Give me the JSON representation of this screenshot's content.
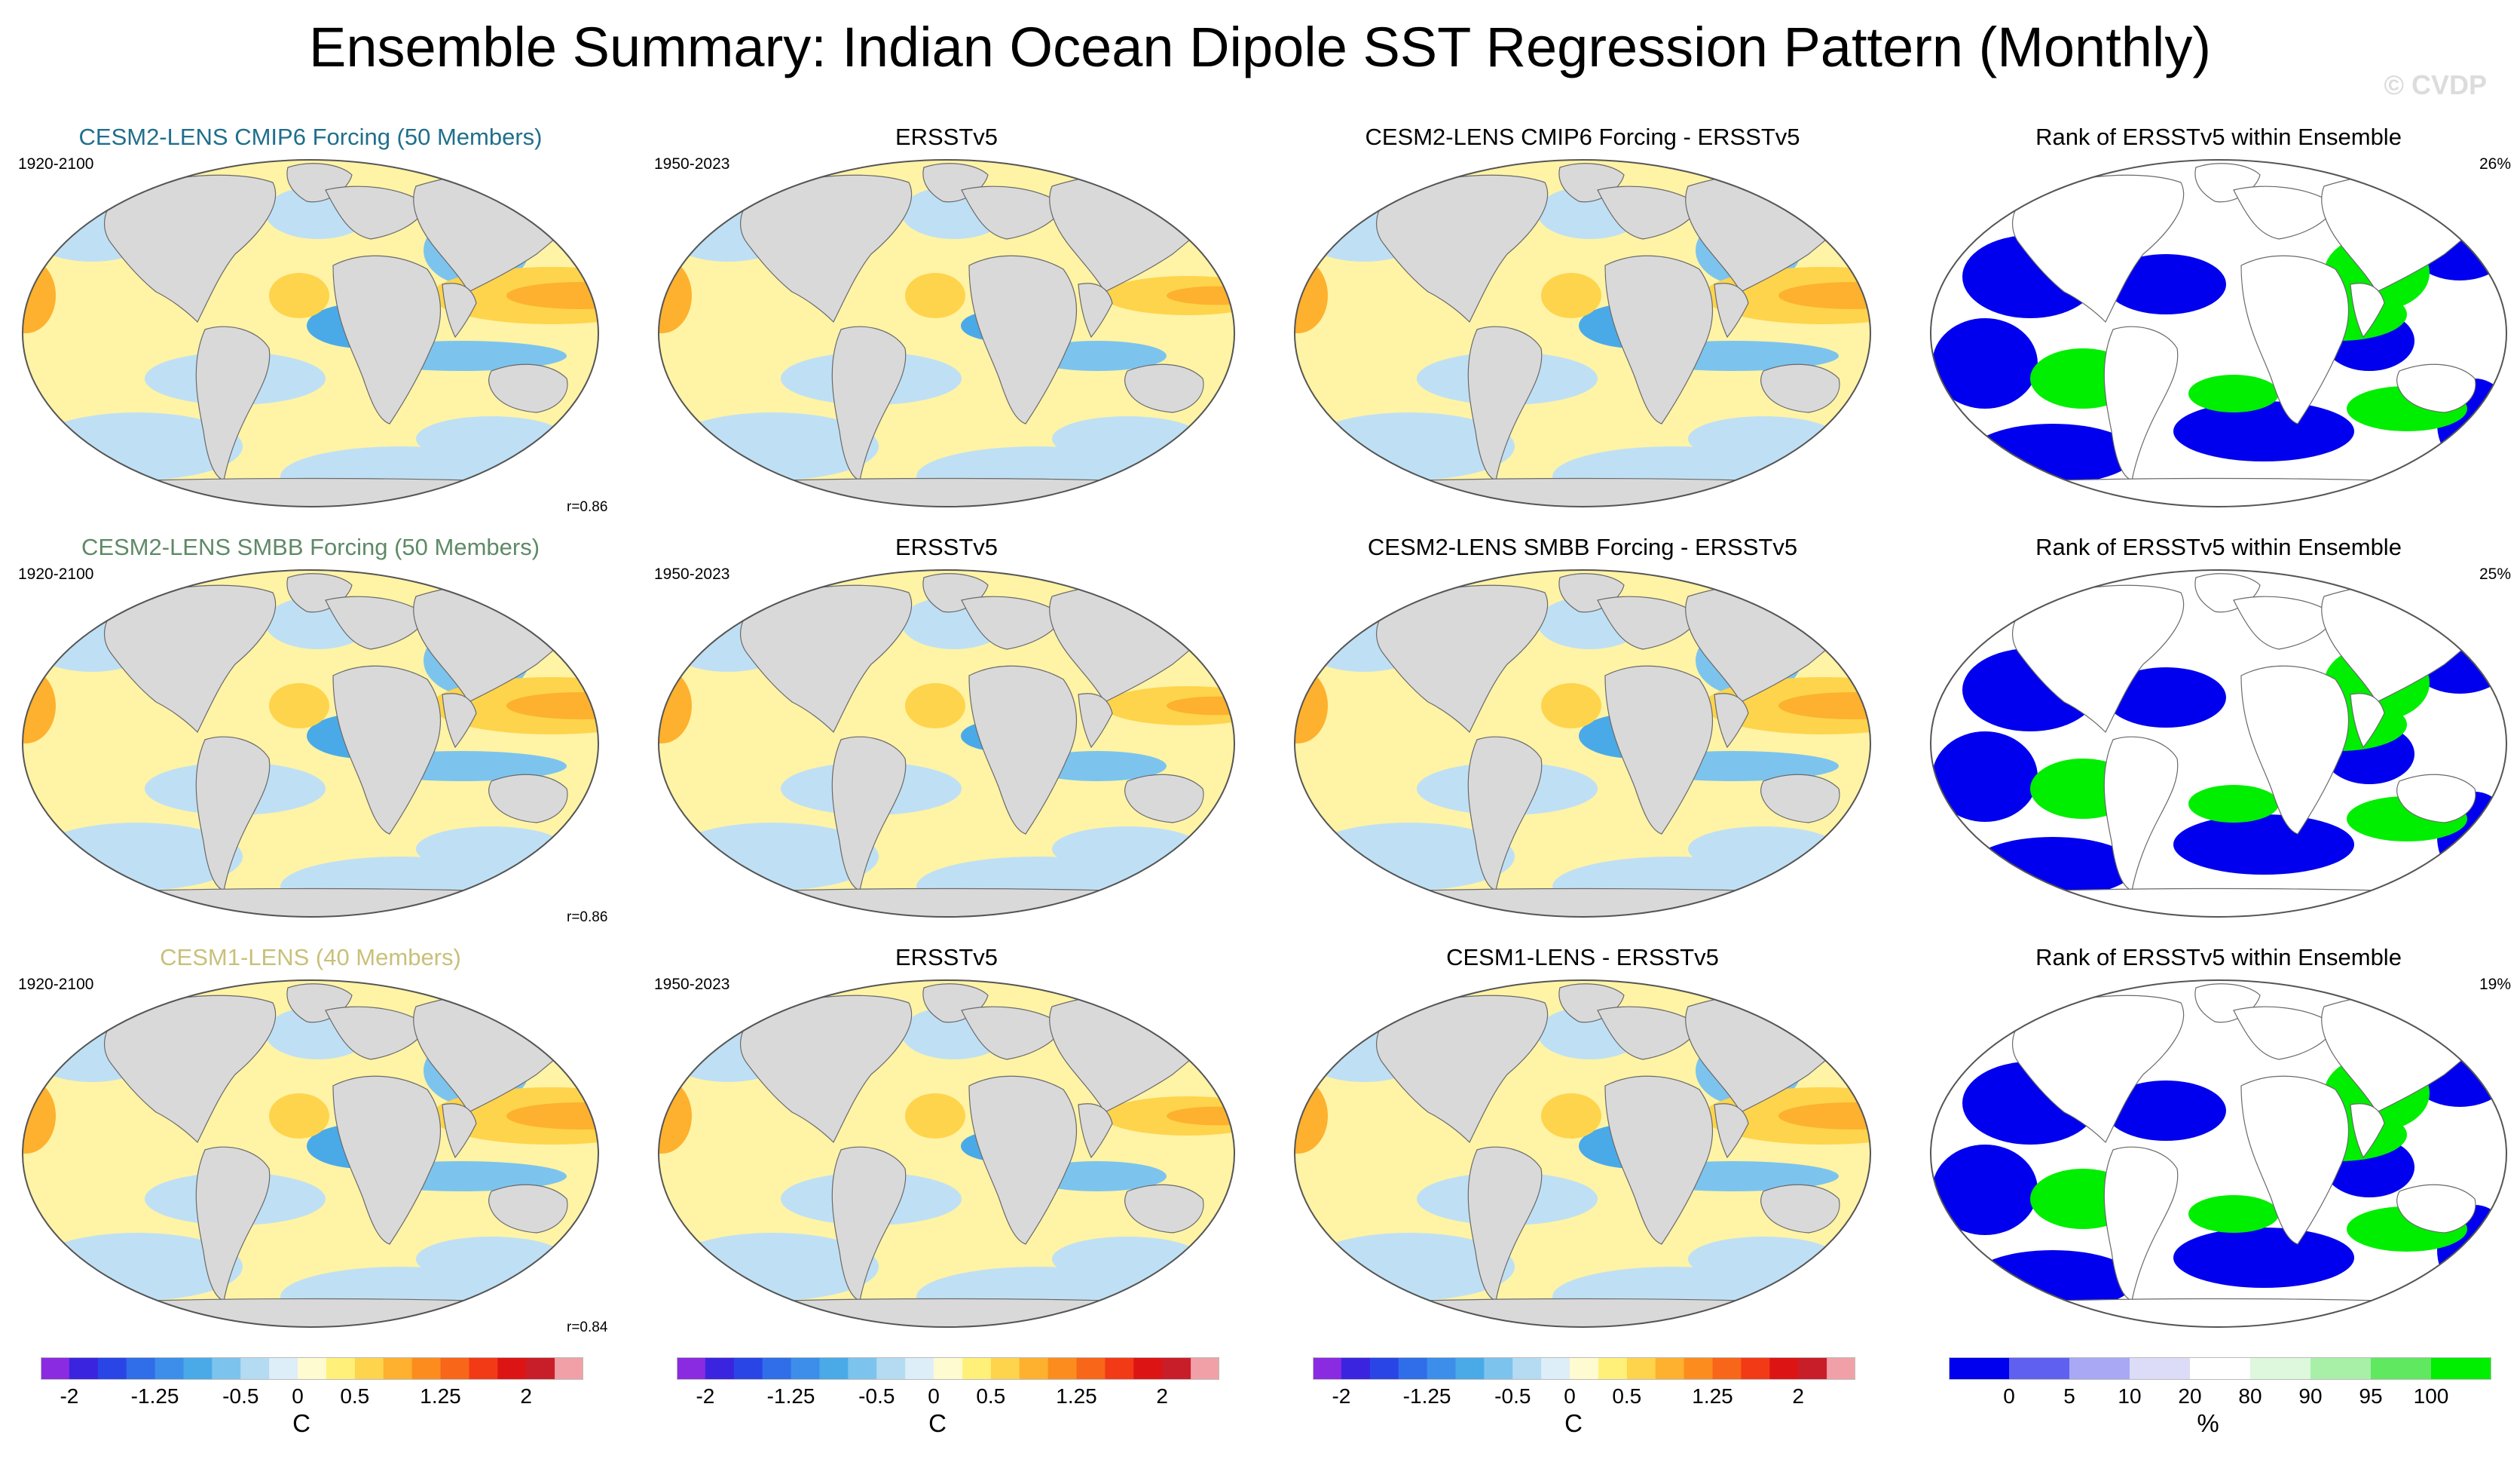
{
  "title": "Ensemble Summary: Indian Ocean Dipole SST Regression Pattern (Monthly)",
  "watermark": "© CVDP",
  "colors": {
    "ocean_base_neg": "#bfe0f4",
    "ocean_base_pos": "#fff3a6",
    "land": "#d9d9d9",
    "title_row1": "#1f6f8b",
    "title_row2": "#5e8a66",
    "title_row3": "#c9c07a",
    "rank_low": "#0000ee",
    "rank_high": "#00ee00"
  },
  "rows": [
    {
      "model_title": "CESM2-LENS CMIP6 Forcing (50 Members)",
      "model_period": "1920-2100",
      "correlation": "r=0.86",
      "obs_title": "ERSSTv5",
      "obs_period": "1950-2023",
      "diff_title": "CESM2-LENS CMIP6 Forcing - ERSSTv5",
      "rank_title": "Rank of ERSSTv5 within Ensemble",
      "rank_percent": "26%"
    },
    {
      "model_title": "CESM2-LENS SMBB Forcing (50 Members)",
      "model_period": "1920-2100",
      "correlation": "r=0.86",
      "obs_title": "ERSSTv5",
      "obs_period": "1950-2023",
      "diff_title": "CESM2-LENS SMBB Forcing - ERSSTv5",
      "rank_title": "Rank of ERSSTv5 within Ensemble",
      "rank_percent": "25%"
    },
    {
      "model_title": "CESM1-LENS (40 Members)",
      "model_period": "1920-2100",
      "correlation": "r=0.84",
      "obs_title": "ERSSTv5",
      "obs_period": "1950-2023",
      "diff_title": "CESM1-LENS - ERSSTv5",
      "rank_title": "Rank of ERSSTv5 within Ensemble",
      "rank_percent": "19%"
    }
  ],
  "sst_colorbar": {
    "unit": "C",
    "colors": [
      "#8a2be2",
      "#3b24e0",
      "#2a45e6",
      "#2f6ee8",
      "#3c8eea",
      "#4aaae8",
      "#7cc4ee",
      "#b4dbf2",
      "#ddeef8",
      "#fffbd0",
      "#fff07a",
      "#fed44c",
      "#fdb12e",
      "#fc8c1e",
      "#f8661a",
      "#f23a16",
      "#dd1414",
      "#c81e2a",
      "#f2a0a8"
    ],
    "tick_values": [
      -2,
      -1.25,
      -0.5,
      0,
      0.5,
      1.25,
      2
    ],
    "tick_labels": [
      "-2",
      "-1.25",
      "-0.5",
      "0",
      "0.5",
      "1.25",
      "2"
    ]
  },
  "rank_colorbar": {
    "unit": "%",
    "colors": [
      "#0000ee",
      "#6060f0",
      "#a8a8f4",
      "#dcdcf8",
      "#ffffff",
      "#ddf8dd",
      "#a8f0a8",
      "#60e860",
      "#00ee00"
    ],
    "tick_values": [
      0,
      5,
      10,
      20,
      80,
      90,
      95,
      100
    ],
    "tick_labels": [
      "0",
      "5",
      "10",
      "20",
      "80",
      "90",
      "95",
      "100"
    ]
  }
}
